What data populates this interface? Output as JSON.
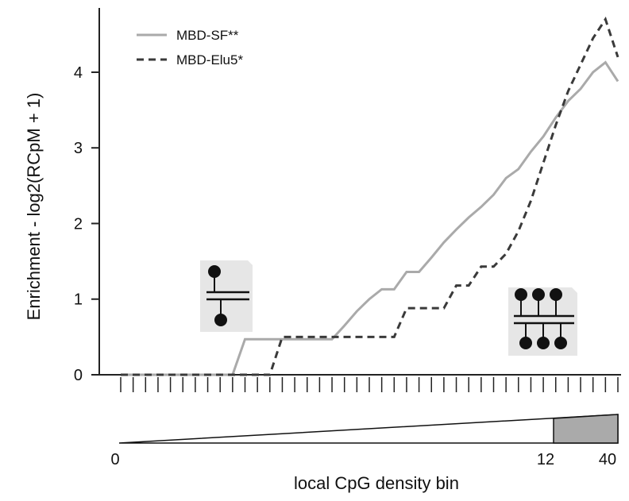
{
  "chart_data": {
    "type": "line",
    "ylabel": "Enrichment - log2(RCpM + 1)",
    "xlabel": "local CpG density bin",
    "x": [
      0,
      1,
      2,
      3,
      4,
      5,
      6,
      7,
      8,
      9,
      10,
      11,
      12,
      13,
      14,
      15,
      16,
      17,
      18,
      19,
      20,
      21,
      22,
      23,
      24,
      25,
      26,
      27,
      28,
      29,
      30,
      31,
      32,
      33,
      34,
      35,
      36,
      37,
      38,
      39,
      40
    ],
    "xlim": [
      0,
      40
    ],
    "xticks": [
      0,
      1,
      2,
      3,
      4,
      5,
      6,
      7,
      8,
      9,
      10,
      11,
      12,
      13,
      14,
      15,
      16,
      17,
      18,
      19,
      20,
      21,
      22,
      23,
      24,
      25,
      26,
      27,
      28,
      29,
      30,
      31,
      32,
      33,
      34,
      35,
      36,
      37,
      38,
      39,
      40
    ],
    "ylim": [
      0,
      4.85
    ],
    "yticks": [
      0,
      1,
      2,
      3,
      4
    ],
    "density_scale_labels": [
      "0",
      "12",
      "40"
    ],
    "series": [
      {
        "name": "MBD-SF**",
        "color": "#aaaaaa",
        "dash": false,
        "values": [
          0,
          0,
          0,
          0,
          0,
          0,
          0,
          0,
          0,
          0,
          0.47,
          0.47,
          0.47,
          0.47,
          0.47,
          0.47,
          0.47,
          0.47,
          0.65,
          0.84,
          1.0,
          1.13,
          1.13,
          1.36,
          1.36,
          1.55,
          1.75,
          1.92,
          2.08,
          2.22,
          2.38,
          2.6,
          2.72,
          2.95,
          3.15,
          3.4,
          3.62,
          3.78,
          4.0,
          4.13,
          3.88
        ]
      },
      {
        "name": "MBD-Elu5*",
        "color": "#3a3a3a",
        "dash": true,
        "values": [
          0,
          0,
          0,
          0,
          0,
          0,
          0,
          0,
          0,
          0,
          0,
          0,
          0,
          0.5,
          0.5,
          0.5,
          0.5,
          0.5,
          0.5,
          0.5,
          0.5,
          0.5,
          0.5,
          0.88,
          0.88,
          0.88,
          0.88,
          1.18,
          1.18,
          1.43,
          1.43,
          1.6,
          1.9,
          2.3,
          2.8,
          3.3,
          3.75,
          4.1,
          4.45,
          4.7,
          4.2
        ]
      }
    ]
  }
}
